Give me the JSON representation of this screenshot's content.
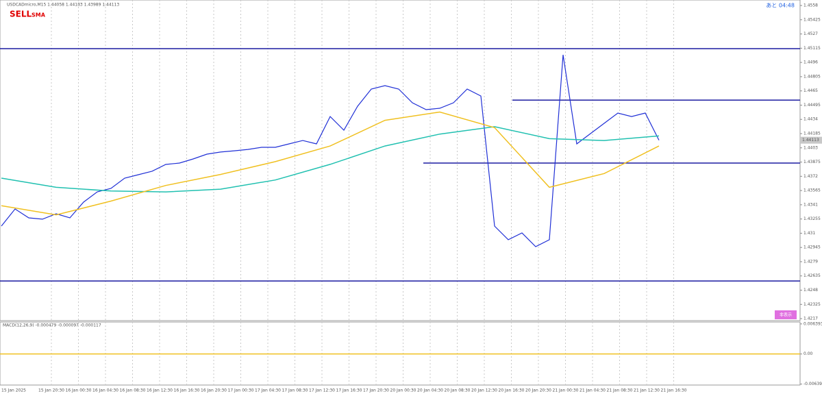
{
  "chart_data": {
    "type": "line",
    "title": "USDCADmicro,M15  1.44058 1.44183 1.43989 1.44113",
    "signal": "SELL",
    "signal_sub": "SMA",
    "timer": "あと 04:48",
    "button": "非表示",
    "current_price": 1.44113,
    "ylim": [
      1.42148,
      1.4564
    ],
    "yticks": [
      1.4558,
      1.45425,
      1.4527,
      1.45115,
      1.4496,
      1.44805,
      1.4465,
      1.44495,
      1.4434,
      1.44185,
      1.4403,
      1.43875,
      1.4372,
      1.43565,
      1.4341,
      1.43255,
      1.431,
      1.42945,
      1.4279,
      1.42635,
      1.4248,
      1.42325,
      1.4217
    ],
    "x_labels": [
      "15 Jan 2025",
      "15 Jan 20:30",
      "16 Jan 00:30",
      "16 Jan 04:30",
      "16 Jan 08:30",
      "16 Jan 12:30",
      "16 Jan 16:30",
      "16 Jan 20:30",
      "17 Jan 00:30",
      "17 Jan 04:30",
      "17 Jan 08:30",
      "17 Jan 12:30",
      "17 Jan 16:30",
      "17 Jan 20:30",
      "20 Jan 00:30",
      "20 Jan 04:30",
      "20 Jan 08:30",
      "20 Jan 12:30",
      "20 Jan 16:30",
      "20 Jan 20:30",
      "21 Jan 00:30",
      "21 Jan 04:30",
      "21 Jan 08:30",
      "21 Jan 12:30",
      "21 Jan 16:30"
    ],
    "levels": [
      1.4511,
      1.4455,
      1.43864,
      1.4258
    ],
    "series": [
      {
        "name": "Price",
        "color": "#1f2fd6",
        "values": [
          1.43178,
          1.43364,
          1.43267,
          1.43253,
          1.43312,
          1.43267,
          1.43439,
          1.43551,
          1.43588,
          1.437,
          1.43737,
          1.43775,
          1.43849,
          1.43864,
          1.43909,
          1.43961,
          1.43984,
          1.43998,
          1.44013,
          1.44036,
          1.44036,
          1.44073,
          1.4411,
          1.44073,
          1.44371,
          1.44222,
          1.44483,
          1.4467,
          1.44707,
          1.4467,
          1.44521,
          1.44446,
          1.44461,
          1.44521,
          1.4467,
          1.44595,
          1.43178,
          1.43029,
          1.43103,
          1.42954,
          1.43029,
          1.45043,
          1.44073,
          1.44185,
          1.44297,
          1.44409,
          1.44371,
          1.44409,
          1.44113
        ]
      },
      {
        "name": "MA Slow",
        "color": "#20c0b0",
        "values": [
          1.437,
          1.436,
          1.4356,
          1.4355,
          1.4358,
          1.4368,
          1.4385,
          1.4405,
          1.4418,
          1.4426,
          1.4413,
          1.4411,
          1.4416
        ]
      },
      {
        "name": "MA Mid",
        "color": "#f0c020",
        "values": [
          1.434,
          1.433,
          1.4345,
          1.4362,
          1.4374,
          1.4388,
          1.4405,
          1.4433,
          1.4442,
          1.4425,
          1.436,
          1.4375,
          1.4405
        ]
      }
    ],
    "macd": {
      "label": "MACD(12,26,9) -0.000479 -0.000097 -0.000117",
      "ylim": [
        -0.0066,
        0.0068
      ],
      "yticks": [
        0.006393,
        {
          "value": 0,
          "label": "0.00"
        },
        -0.006393
      ]
    }
  }
}
